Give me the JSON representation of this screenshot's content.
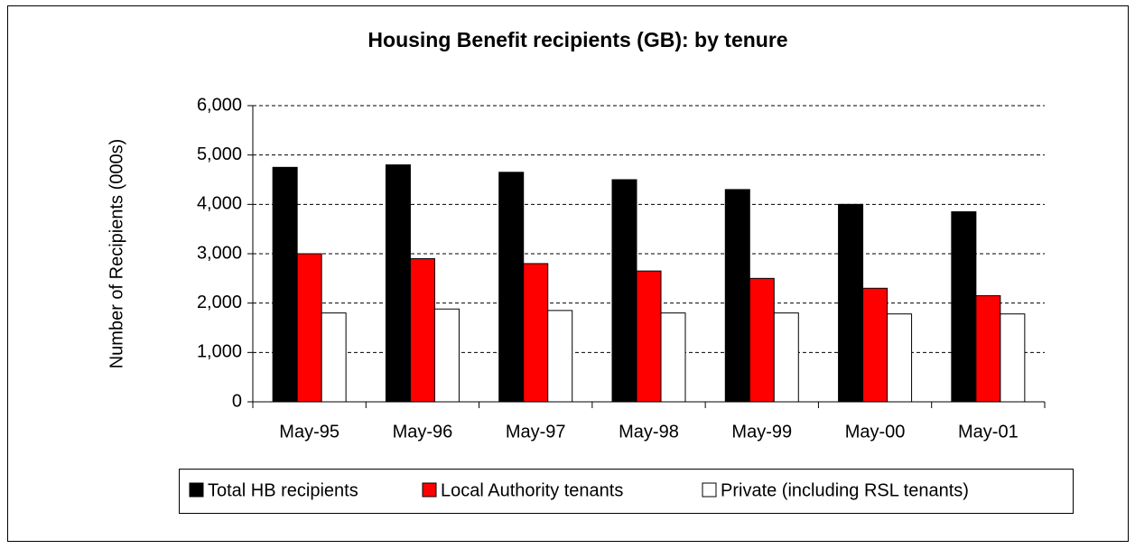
{
  "chart_data": {
    "type": "bar",
    "title": "Housing Benefit recipients (GB): by tenure",
    "y_label": "Number of Recipients (000s)",
    "categories": [
      "May-95",
      "May-96",
      "May-97",
      "May-98",
      "May-99",
      "May-00",
      "May-01"
    ],
    "series": [
      {
        "name": "Total HB recipients",
        "color": "#000000",
        "values": [
          4750,
          4800,
          4650,
          4500,
          4300,
          4000,
          3850
        ]
      },
      {
        "name": "Local Authority tenants",
        "color": "#ff0000",
        "values": [
          3000,
          2900,
          2800,
          2650,
          2500,
          2300,
          2150
        ]
      },
      {
        "name": "Private (including RSL tenants)",
        "color": "#ffffff",
        "values": [
          1800,
          1880,
          1850,
          1800,
          1800,
          1780,
          1780
        ]
      }
    ],
    "ylim": [
      0,
      6000
    ],
    "yticks": [
      0,
      {
        "value": 1000,
        "label": "1,000"
      },
      {
        "value": 2000,
        "label": "2,000"
      },
      {
        "value": 3000,
        "label": "3,000"
      },
      {
        "value": 4000,
        "label": "4,000"
      },
      {
        "value": 5000,
        "label": "5,000"
      },
      {
        "value": 6000,
        "label": "6,000"
      }
    ],
    "grid": true,
    "legend": "bottom"
  }
}
